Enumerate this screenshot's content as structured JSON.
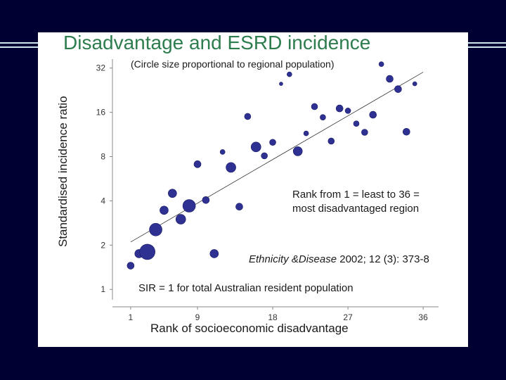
{
  "colors": {
    "background": "#000033",
    "panel": "#ffffff",
    "title": "#2e7d4f",
    "point": "#2e3192",
    "accent_rule": "#cfe6ec"
  },
  "chart_data": {
    "type": "scatter",
    "title": "Disadvantage and ESRD incidence",
    "subtitle": "(Circle size proportional to regional population)",
    "xlabel": "Rank of socioeconomic disadvantage",
    "ylabel": "Standardised incidence ratio",
    "yscale": "log2",
    "xlim": [
      0,
      37
    ],
    "ylim": [
      0.85,
      36
    ],
    "x_ticks": [
      1,
      9,
      18,
      27,
      36
    ],
    "y_ticks": [
      1,
      2,
      4,
      8,
      16,
      32
    ],
    "annotations": {
      "rank_line1": "Rank from 1 = least  to  36 =",
      "rank_line2": "most disadvantaged region",
      "citation_journal": "Ethnicity &Disease",
      "citation_ref": " 2002; 12 (3): 373-8",
      "sir_note": "SIR = 1 for total Australian resident population"
    },
    "trendline": {
      "x": [
        1,
        36
      ],
      "y": [
        2.1,
        30
      ]
    },
    "points": [
      {
        "x": 1,
        "y": 1.45,
        "size": 5
      },
      {
        "x": 2,
        "y": 1.75,
        "size": 6
      },
      {
        "x": 3,
        "y": 1.8,
        "size": 11
      },
      {
        "x": 4,
        "y": 2.55,
        "size": 9
      },
      {
        "x": 5,
        "y": 3.45,
        "size": 6
      },
      {
        "x": 6,
        "y": 4.5,
        "size": 6
      },
      {
        "x": 7,
        "y": 3.0,
        "size": 7
      },
      {
        "x": 8,
        "y": 3.7,
        "size": 9
      },
      {
        "x": 9,
        "y": 7.1,
        "size": 5
      },
      {
        "x": 10,
        "y": 4.05,
        "size": 5
      },
      {
        "x": 11,
        "y": 1.75,
        "size": 6
      },
      {
        "x": 12,
        "y": 8.6,
        "size": 3.5
      },
      {
        "x": 13,
        "y": 6.75,
        "size": 7
      },
      {
        "x": 14,
        "y": 3.65,
        "size": 5
      },
      {
        "x": 15,
        "y": 15.0,
        "size": 4.5
      },
      {
        "x": 16,
        "y": 9.3,
        "size": 7
      },
      {
        "x": 17,
        "y": 8.1,
        "size": 4.5
      },
      {
        "x": 18,
        "y": 10.0,
        "size": 4.5
      },
      {
        "x": 19,
        "y": 25.0,
        "size": 2.5
      },
      {
        "x": 20,
        "y": 29.0,
        "size": 3.5
      },
      {
        "x": 21,
        "y": 8.7,
        "size": 6.5
      },
      {
        "x": 22,
        "y": 11.5,
        "size": 3.5
      },
      {
        "x": 23,
        "y": 17.5,
        "size": 4.5
      },
      {
        "x": 24,
        "y": 14.8,
        "size": 4
      },
      {
        "x": 25,
        "y": 10.2,
        "size": 4.5
      },
      {
        "x": 26,
        "y": 17.0,
        "size": 5
      },
      {
        "x": 27,
        "y": 16.4,
        "size": 4
      },
      {
        "x": 28,
        "y": 13.4,
        "size": 4
      },
      {
        "x": 29,
        "y": 11.7,
        "size": 4.5
      },
      {
        "x": 30,
        "y": 15.4,
        "size": 5
      },
      {
        "x": 31,
        "y": 34.0,
        "size": 3.5
      },
      {
        "x": 32,
        "y": 27.0,
        "size": 5
      },
      {
        "x": 33,
        "y": 23.0,
        "size": 5
      },
      {
        "x": 34,
        "y": 11.8,
        "size": 5
      },
      {
        "x": 35,
        "y": 25.0,
        "size": 3
      }
    ]
  }
}
